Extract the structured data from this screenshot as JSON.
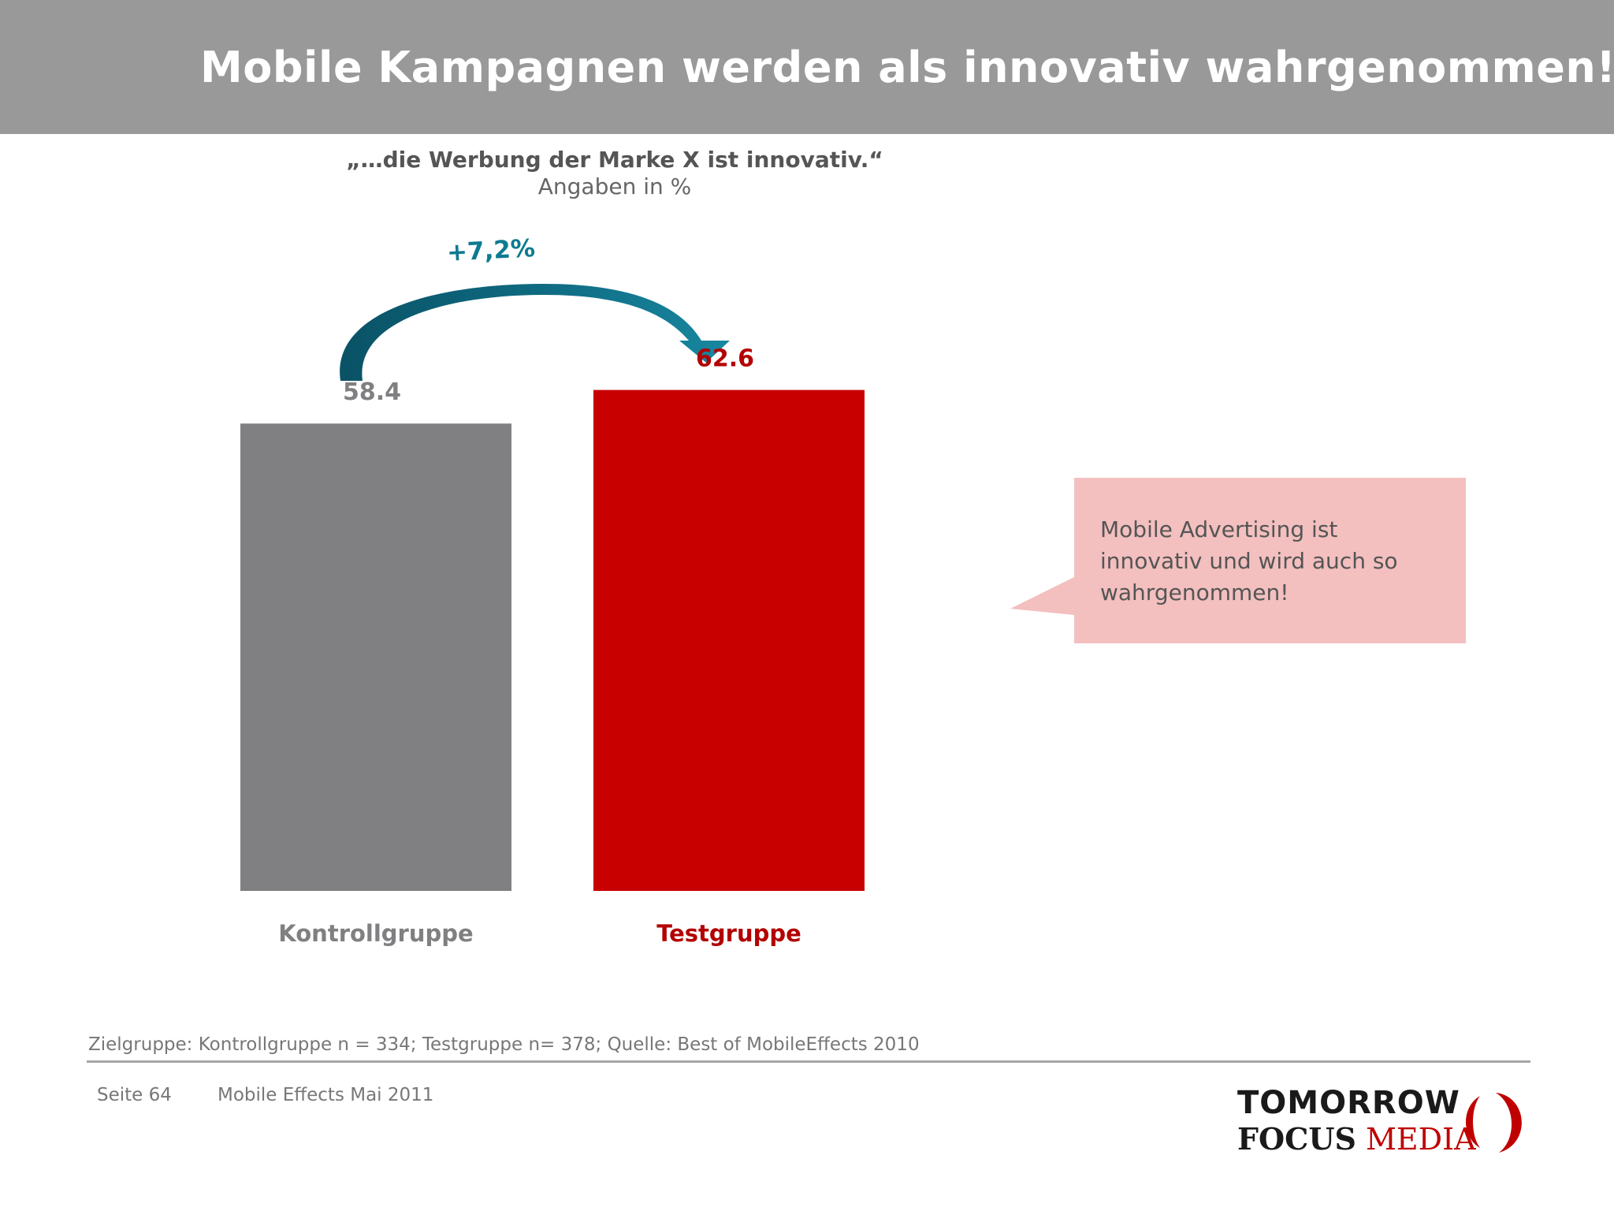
{
  "header": {
    "title": "Mobile Kampagnen werden als innovativ wahrgenommen!",
    "background": "#999999"
  },
  "chart_data": {
    "type": "bar",
    "title": "„…die Werbung der Marke X ist innovativ.“",
    "subtitle": "Angaben in %",
    "categories": [
      "Kontrollgruppe",
      "Testgruppe"
    ],
    "values": [
      58.4,
      62.6
    ],
    "value_labels": [
      "58.4",
      "62.6"
    ],
    "colors": [
      "#807f81",
      "#c80000"
    ],
    "label_colors": [
      "#807f81",
      "#b30000"
    ],
    "annotation": {
      "text": "+7,2%",
      "color": "#0e7a90",
      "arrow_color": "#0d6378"
    },
    "grid": false,
    "legend": false
  },
  "callout": {
    "text": "Mobile Advertising ist innovativ und wird auch so wahrgenommen!",
    "background": "#f3bfbf"
  },
  "footer": {
    "note": "Zielgruppe: Kontrollgruppe n = 334; Testgruppe n= 378; Quelle: Best of MobileEffects 2010",
    "page": "Seite 64",
    "date": "Mobile Effects Mai 2011"
  },
  "logo": {
    "line1": "TOMORROW",
    "line2a": "FOCUS",
    "line2b": "MEDIA",
    "accent": "#c00000"
  }
}
